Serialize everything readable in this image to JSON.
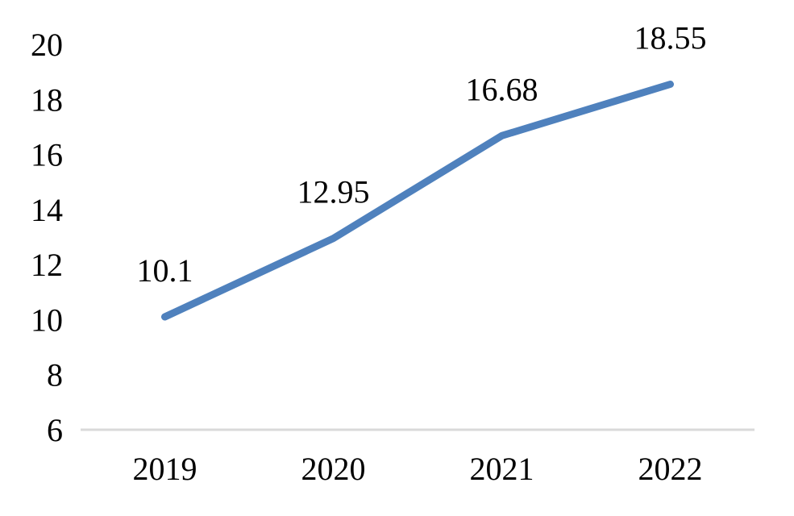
{
  "chart_data": {
    "type": "line",
    "categories": [
      "2019",
      "2020",
      "2021",
      "2022"
    ],
    "series": [
      {
        "name": "series-1",
        "values": [
          10.1,
          12.95,
          16.68,
          18.55
        ]
      }
    ],
    "data_labels": [
      "10.1",
      "12.95",
      "16.68",
      "18.55"
    ],
    "y_ticks": [
      "20",
      "18",
      "16",
      "14",
      "12",
      "10",
      "8",
      "6"
    ],
    "y_tick_values": [
      20,
      18,
      16,
      14,
      12,
      10,
      8,
      6
    ],
    "ylim": [
      6,
      20
    ],
    "title": "",
    "xlabel": "",
    "ylabel": "",
    "grid": false,
    "legend": "none",
    "colors": {
      "line": "#4F81BD",
      "axis": "#D9D9D9",
      "text": "#000000",
      "background": "#FFFFFF"
    }
  }
}
